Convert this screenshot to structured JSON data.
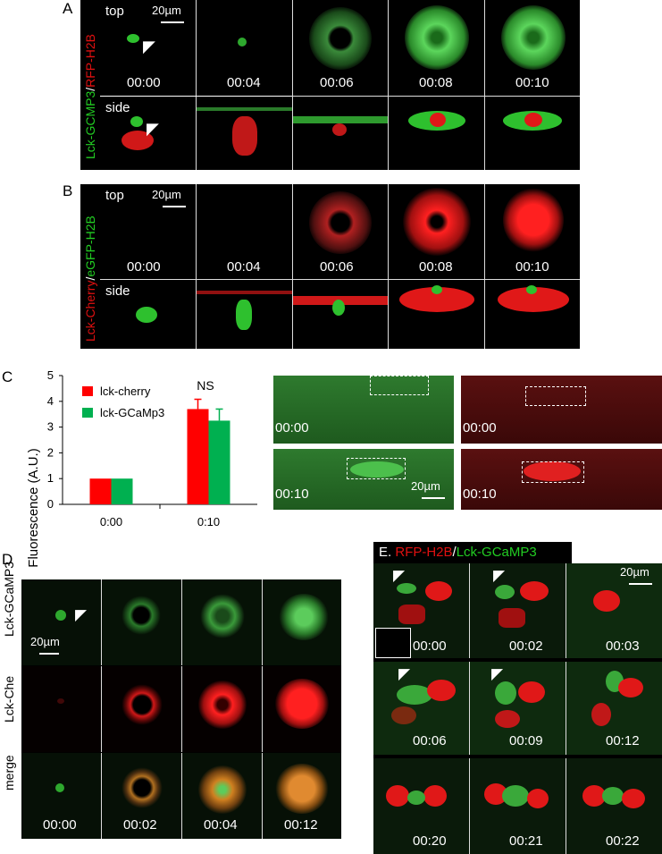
{
  "panelA": {
    "label": "A",
    "side_title_left": "Lck-GCMP3",
    "side_title_sep": "/",
    "side_title_right": "RFP-H2B",
    "row_top": "top",
    "row_side": "side",
    "scale": "20µm",
    "times": [
      "00:00",
      "00:04",
      "00:06",
      "00:08",
      "00:10"
    ]
  },
  "panelB": {
    "label": "B",
    "side_title_left": "Lck-Cherry",
    "side_title_sep": "/",
    "side_title_right": "eGFP-H2B",
    "row_top": "top",
    "row_side": "side",
    "scale": "20µm",
    "times": [
      "00:00",
      "00:04",
      "00:06",
      "00:08",
      "00:10"
    ]
  },
  "panelC": {
    "label": "C",
    "scale": "20µm",
    "img_times": [
      "00:00",
      "00:00",
      "00:10",
      "00:10"
    ]
  },
  "chart_data": {
    "type": "bar",
    "categories": [
      "0:00",
      "0:10"
    ],
    "series": [
      {
        "name": "lck-cherry",
        "values": [
          1.0,
          3.7
        ],
        "errors": [
          0.0,
          0.38
        ],
        "color": "#ff0000"
      },
      {
        "name": "lck-GCaMp3",
        "values": [
          1.0,
          3.25
        ],
        "errors": [
          0.0,
          0.45
        ],
        "color": "#00b050"
      }
    ],
    "ylabel": "Fluorescence (A.U.)",
    "ylim": [
      0,
      5
    ],
    "yticks": [
      "0",
      "1",
      "2",
      "3",
      "4",
      "5"
    ],
    "annotation": "NS",
    "legend_position": "top-left"
  },
  "panelD": {
    "label": "D",
    "rows": [
      "Lck-GCaMP3",
      "Lck-Che",
      "merge"
    ],
    "scale": "20µm",
    "times": [
      "00:00",
      "00:02",
      "00:04",
      "00:12"
    ]
  },
  "panelE": {
    "label": "E.",
    "title_left": "RFP-H2B",
    "title_sep": "/",
    "title_right": "Lck-GCaMP3",
    "scale": "20µm",
    "times": [
      "00:00",
      "00:02",
      "00:03",
      "00:06",
      "00:09",
      "00:12",
      "00:20",
      "00:21",
      "00:22"
    ]
  }
}
